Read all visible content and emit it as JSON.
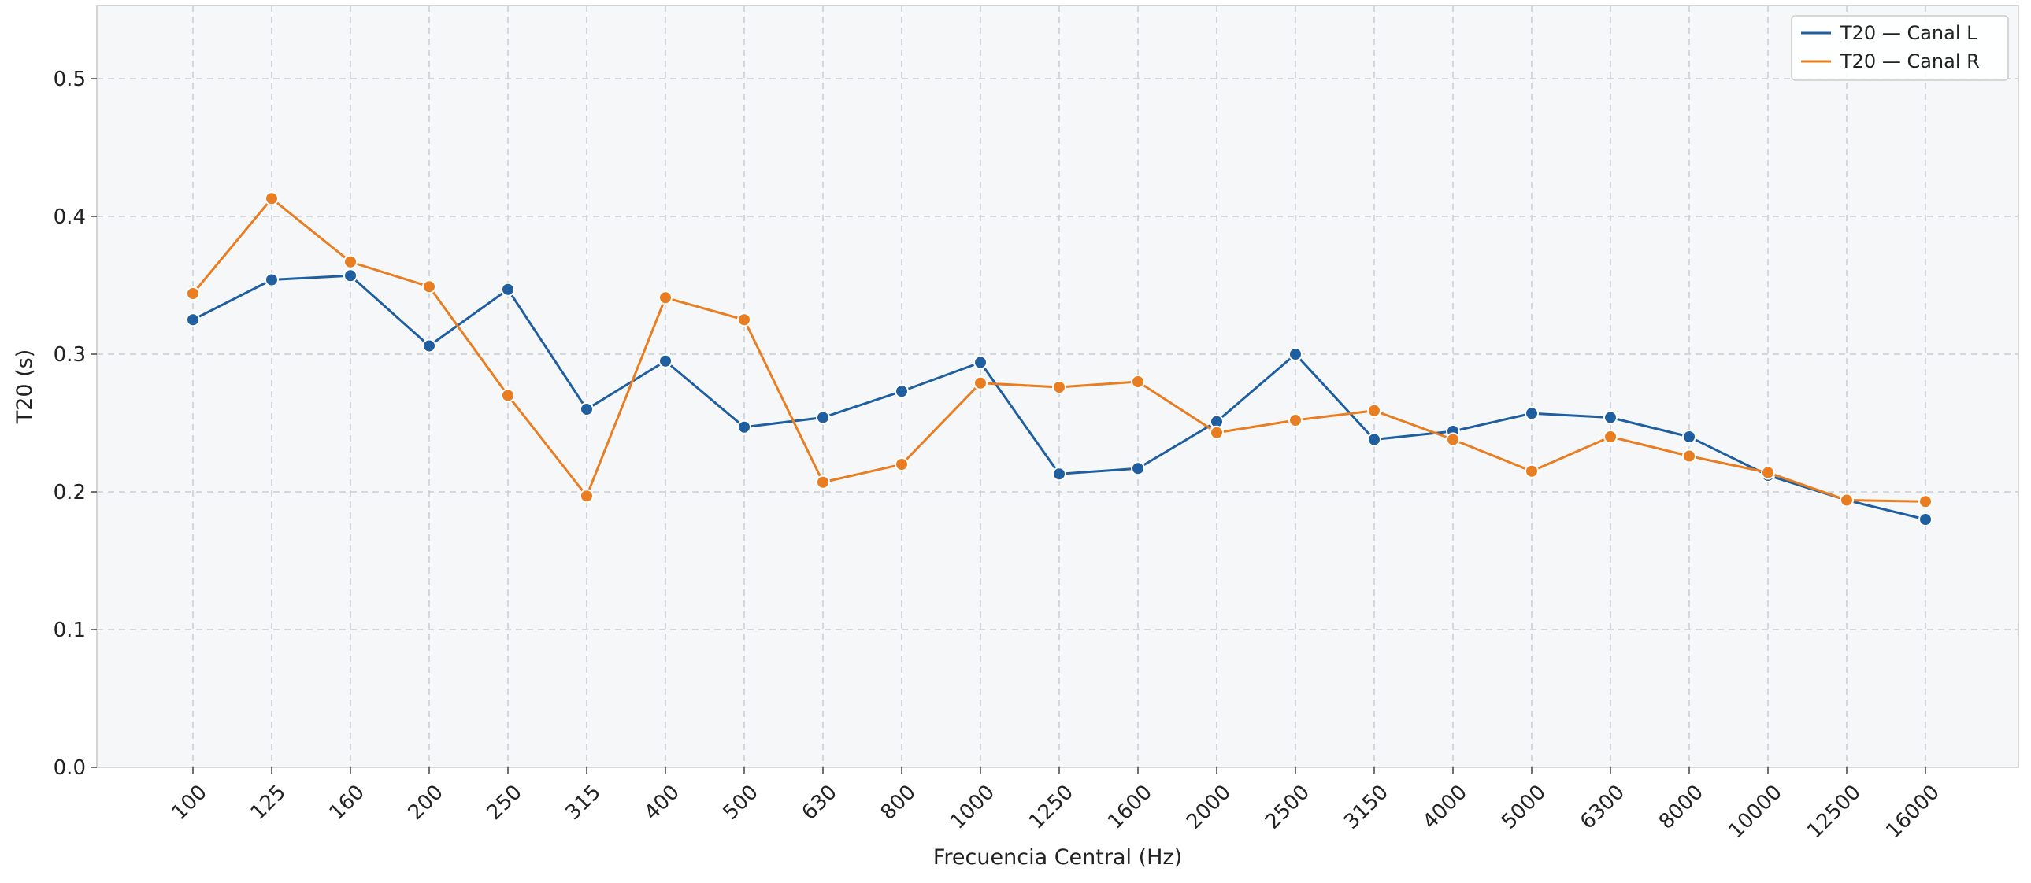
{
  "chart_data": {
    "type": "line",
    "xlabel": "Frecuencia Central (Hz)",
    "ylabel": "T20 (s)",
    "categories": [
      "100",
      "125",
      "160",
      "200",
      "250",
      "315",
      "400",
      "500",
      "630",
      "800",
      "1000",
      "1250",
      "1600",
      "2000",
      "2500",
      "3150",
      "4000",
      "5000",
      "6300",
      "8000",
      "10000",
      "12500",
      "16000"
    ],
    "yticks": [
      "0.0",
      "0.1",
      "0.2",
      "0.3",
      "0.4",
      "0.5"
    ],
    "ylim": [
      0,
      0.55
    ],
    "grid": true,
    "legend_position": "top-right",
    "series": [
      {
        "name": "T20 — Canal L",
        "color": "#1f5fa0",
        "values": [
          0.325,
          0.354,
          0.357,
          0.306,
          0.347,
          0.26,
          0.295,
          0.247,
          0.254,
          0.273,
          0.294,
          0.213,
          0.217,
          0.251,
          0.3,
          0.238,
          0.244,
          0.257,
          0.254,
          0.24,
          0.212,
          0.194,
          0.18
        ]
      },
      {
        "name": "T20 — Canal R",
        "color": "#e87d22",
        "values": [
          0.344,
          0.413,
          0.367,
          0.349,
          0.27,
          0.197,
          0.341,
          0.325,
          0.207,
          0.22,
          0.279,
          0.276,
          0.28,
          0.243,
          0.252,
          0.259,
          0.238,
          0.215,
          0.24,
          0.226,
          0.214,
          0.194,
          0.193
        ]
      }
    ]
  }
}
